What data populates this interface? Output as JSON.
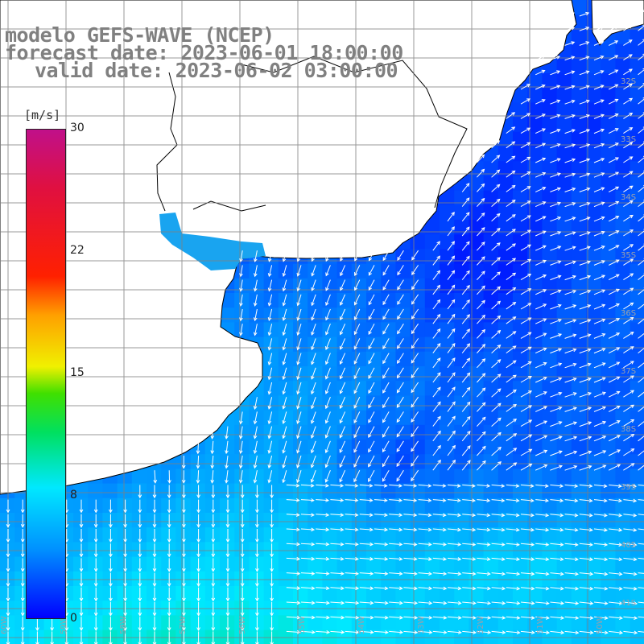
{
  "header": {
    "line1": "modelo GEFS-WAVE (NCEP)",
    "line2": "forecast date: 2023-06-01 18:00:00",
    "line3": "valid date: 2023-06-02 03:00:00"
  },
  "colorbar": {
    "unit": "[m/s]",
    "ticks": [
      {
        "label": "30",
        "value": 30
      },
      {
        "label": "22",
        "value": 22
      },
      {
        "label": "15",
        "value": 15
      },
      {
        "label": "8",
        "value": 8
      },
      {
        "label": "0",
        "value": 0
      }
    ],
    "colors": [
      "#0000ff",
      "#0090ff",
      "#00e8ff",
      "#00e060",
      "#f0f000",
      "#ffa000",
      "#ff2000",
      "#c0108a"
    ]
  },
  "map": {
    "land_color": "#ffffff",
    "coast_color": "#000000",
    "grid_color": "#808080",
    "lat_labels": [
      "32S",
      "33S",
      "34S",
      "35S",
      "36S",
      "37S",
      "38S",
      "39S",
      "40S",
      "41S"
    ],
    "lon_labels": [
      "60W",
      "59W",
      "58W",
      "57W",
      "56W",
      "55W",
      "54W",
      "53W",
      "52W",
      "51W",
      "50W"
    ]
  }
}
